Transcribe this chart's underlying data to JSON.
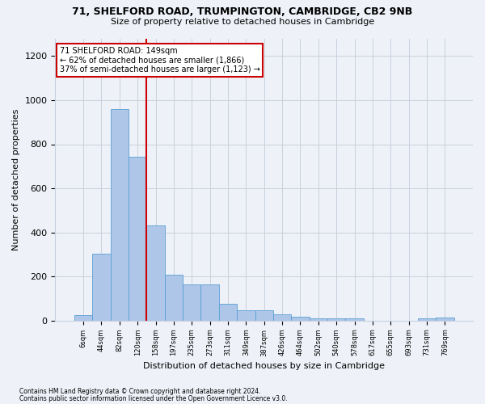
{
  "title1": "71, SHELFORD ROAD, TRUMPINGTON, CAMBRIDGE, CB2 9NB",
  "title2": "Size of property relative to detached houses in Cambridge",
  "xlabel": "Distribution of detached houses by size in Cambridge",
  "ylabel": "Number of detached properties",
  "bar_labels": [
    "6sqm",
    "44sqm",
    "82sqm",
    "120sqm",
    "158sqm",
    "197sqm",
    "235sqm",
    "273sqm",
    "311sqm",
    "349sqm",
    "387sqm",
    "426sqm",
    "464sqm",
    "502sqm",
    "540sqm",
    "578sqm",
    "617sqm",
    "655sqm",
    "693sqm",
    "731sqm",
    "769sqm"
  ],
  "bar_values": [
    25,
    305,
    960,
    745,
    430,
    210,
    165,
    165,
    75,
    48,
    48,
    30,
    18,
    12,
    12,
    12,
    0,
    0,
    0,
    12,
    15
  ],
  "bar_color": "#aec6e8",
  "bar_edgecolor": "#5a9fd4",
  "vline_x": 3.5,
  "vline_color": "#cc0000",
  "annotation_text": "71 SHELFORD ROAD: 149sqm\n← 62% of detached houses are smaller (1,866)\n37% of semi-detached houses are larger (1,123) →",
  "annotation_box_color": "#ffffff",
  "annotation_box_edgecolor": "#cc0000",
  "ylim": [
    0,
    1280
  ],
  "yticks": [
    0,
    200,
    400,
    600,
    800,
    1000,
    1200
  ],
  "footer1": "Contains HM Land Registry data © Crown copyright and database right 2024.",
  "footer2": "Contains public sector information licensed under the Open Government Licence v3.0.",
  "bg_color": "#eef2f8",
  "title1_fontsize": 9,
  "title2_fontsize": 8,
  "ylabel_fontsize": 8,
  "xlabel_fontsize": 8
}
